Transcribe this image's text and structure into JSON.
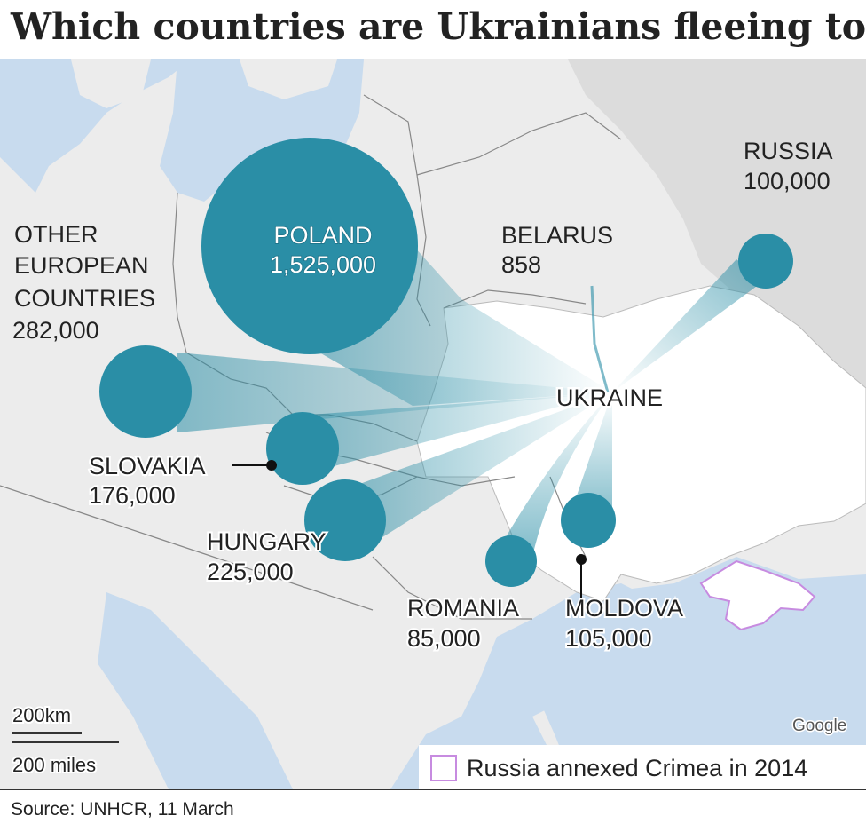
{
  "title": "Which countries are Ukrainians fleeing to?",
  "source": "Source: UNHCR, 11 March",
  "attribution": "Google",
  "legend": {
    "label": "Russia annexed Crimea in 2014",
    "swatch_color": "#c78be0"
  },
  "scale_bar": {
    "km": "200km",
    "miles": "200 miles"
  },
  "origin": {
    "name": "UKRAINE"
  },
  "colors": {
    "bubble": "#2a8ea6",
    "sea": "#c8dbee",
    "land": "#ececec",
    "ukraine": "#ffffff",
    "crimea": "#ffffff",
    "crimea_border": "#c78be0",
    "borders": "#888888"
  },
  "destinations": [
    {
      "id": "poland",
      "name": "POLAND",
      "value_label": "1,525,000",
      "refugees": 1525000
    },
    {
      "id": "other-european",
      "name_lines": [
        "OTHER",
        "EUROPEAN",
        "COUNTRIES"
      ],
      "value_label": "282,000",
      "refugees": 282000
    },
    {
      "id": "hungary",
      "name": "HUNGARY",
      "value_label": "225,000",
      "refugees": 225000
    },
    {
      "id": "slovakia",
      "name": "SLOVAKIA",
      "value_label": "176,000",
      "refugees": 176000
    },
    {
      "id": "moldova",
      "name": "MOLDOVA",
      "value_label": "105,000",
      "refugees": 105000
    },
    {
      "id": "russia",
      "name": "RUSSIA",
      "value_label": "100,000",
      "refugees": 100000
    },
    {
      "id": "romania",
      "name": "ROMANIA",
      "value_label": "85,000",
      "refugees": 85000
    },
    {
      "id": "belarus",
      "name": "BELARUS",
      "value_label": "858",
      "refugees": 858
    }
  ]
}
